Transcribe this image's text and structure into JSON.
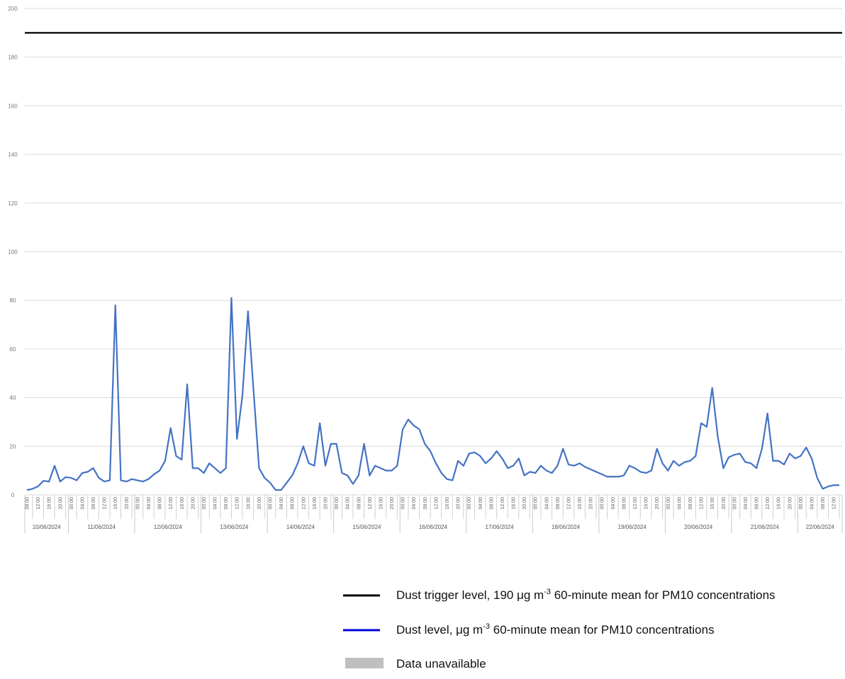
{
  "chart_data": {
    "type": "line",
    "categories": [
      "08:00",
      null,
      "12:00",
      null,
      "16:00",
      null,
      "20:00",
      null,
      "00:00",
      null,
      "04:00",
      null,
      "08:00",
      null,
      "12:00",
      null,
      "16:00",
      null,
      "20:00",
      null,
      "00:00",
      null,
      "04:00",
      null,
      "08:00",
      null,
      "12:00",
      null,
      "16:00",
      null,
      "20:00",
      null,
      "00:00",
      null,
      "04:00",
      null,
      "08:00",
      null,
      "12:00",
      null,
      "16:00",
      null,
      "20:00",
      null,
      "00:00",
      null,
      "04:00",
      null,
      "08:00",
      null,
      "12:00",
      null,
      "16:00",
      null,
      "20:00",
      null,
      "00:00",
      null,
      "04:00",
      null,
      "08:00",
      null,
      "12:00",
      null,
      "16:00",
      null,
      "20:00",
      null,
      "00:00",
      null,
      "04:00",
      null,
      "08:00",
      null,
      "12:00",
      null,
      "16:00",
      null,
      "20:00",
      null,
      "00:00",
      null,
      "04:00",
      null,
      "08:00",
      null,
      "12:00",
      null,
      "16:00",
      null,
      "20:00",
      null,
      "00:00",
      null,
      "04:00",
      null,
      "08:00",
      null,
      "12:00",
      null,
      "16:00",
      null,
      "20:00",
      null,
      "00:00",
      null,
      "04:00",
      null,
      "08:00",
      null,
      "12:00",
      null,
      "16:00",
      null,
      "20:00",
      null,
      "00:00",
      null,
      "04:00",
      null,
      "08:00",
      null,
      "12:00",
      null,
      "16:00",
      null,
      "20:00",
      null,
      "00:00",
      null,
      "04:00",
      null,
      "08:00",
      null,
      "12:00",
      null,
      "16:00",
      null,
      "20:00",
      null,
      "00:00",
      null,
      "04:00",
      null,
      "08:00",
      null,
      "12:00",
      null
    ],
    "day_labels": [
      "10/06/2024",
      "11/06/2024",
      "12/06/2024",
      "13/06/2024",
      "14/06/2024",
      "15/06/2024",
      "16/06/2024",
      "17/06/2024",
      "18/06/2024",
      "19/06/2024",
      "20/06/2024",
      "21/06/2024",
      "22/06/2024"
    ],
    "series": [
      {
        "name": [
          "Dust level, μg m",
          "-3",
          " 60-minute mean for PM10 concentrations"
        ],
        "color": "#4472c4",
        "legend_color": "#0000e0",
        "values": [
          2,
          2.5,
          3.5,
          5.8,
          5.5,
          12,
          5.5,
          7.3,
          7,
          6,
          9,
          9.5,
          11,
          7,
          5.5,
          6,
          78,
          6,
          5.5,
          6.5,
          6,
          5.5,
          6.5,
          8.5,
          10,
          14,
          27.5,
          16,
          14.5,
          45.5,
          11,
          11,
          9,
          13,
          11,
          9,
          11,
          81,
          23,
          41,
          75.5,
          43,
          11,
          7,
          5,
          2,
          2,
          5,
          8,
          13,
          20,
          13,
          12,
          29.5,
          12,
          21,
          21,
          9,
          8,
          4.5,
          8,
          21,
          8,
          12,
          11,
          10,
          10,
          12,
          27,
          31,
          28.5,
          27,
          21,
          18,
          13,
          9,
          6.5,
          6,
          14,
          12,
          17,
          17.5,
          16,
          13,
          15,
          18,
          15,
          11,
          12,
          15,
          8,
          9.5,
          9,
          12,
          10,
          9,
          12,
          19,
          12.5,
          12,
          13,
          11.5,
          10.5,
          9.5,
          8.5,
          7.5,
          7.5,
          7.5,
          8,
          12,
          11,
          9.5,
          9,
          10,
          19,
          13,
          10,
          14,
          12,
          13.5,
          14,
          16,
          29.5,
          28,
          44,
          24,
          11,
          15.5,
          16.5,
          17,
          13.5,
          13,
          11,
          19,
          33.5,
          14,
          14,
          12.5,
          17,
          15,
          16,
          19.5,
          15,
          7,
          2.5,
          3.5,
          4,
          4
        ]
      }
    ],
    "reference_lines": [
      {
        "name": [
          "Dust trigger level, 190 μg m",
          "-3",
          " 60-minute mean for PM10 concentrations"
        ],
        "value": 190,
        "color": "#000000"
      }
    ],
    "unavailable": {
      "name": "Data unavailable",
      "color": "#bfbfbf"
    },
    "ylim": [
      0,
      200
    ],
    "yticks": [
      0,
      20,
      40,
      60,
      80,
      100,
      120,
      140,
      160,
      180,
      200
    ],
    "grid": true
  }
}
